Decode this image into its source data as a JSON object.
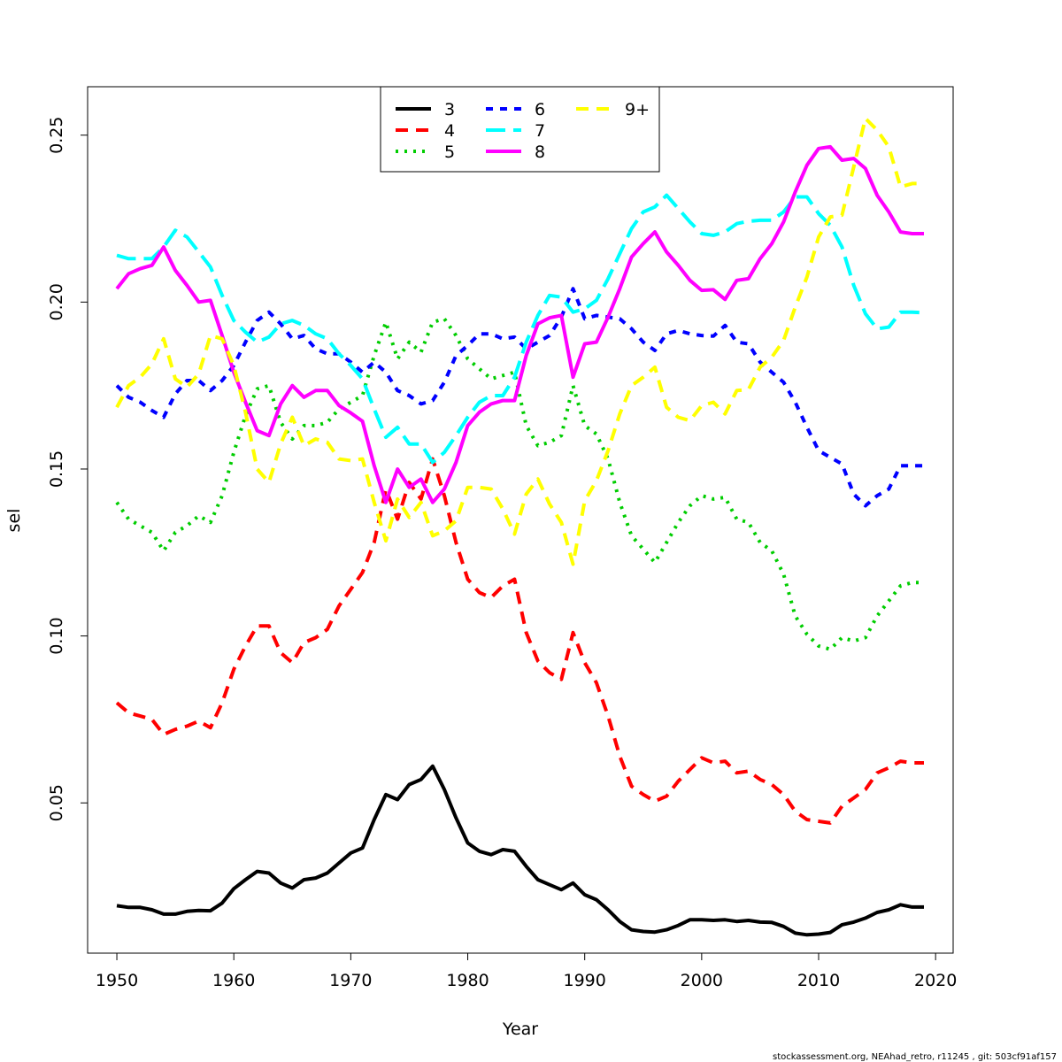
{
  "chart_data": {
    "type": "line",
    "title": "",
    "xlabel": "Year",
    "ylabel": "sel",
    "xlim": [
      1947.5,
      2021.5
    ],
    "ylim": [
      0.005,
      0.2645
    ],
    "xticks": [
      1950,
      1960,
      1970,
      1980,
      1990,
      2000,
      2010,
      2020
    ],
    "xtick_labels": [
      "1950",
      "1960",
      "1970",
      "1980",
      "1990",
      "2000",
      "2010",
      "2020"
    ],
    "yticks": [
      0.05,
      0.1,
      0.15,
      0.2,
      0.25
    ],
    "ytick_labels": [
      "0.05",
      "0.10",
      "0.15",
      "0.20",
      "0.25"
    ],
    "grid": false,
    "legend_position": "top-center",
    "x_start": 1950,
    "series": [
      {
        "name": "3",
        "color": "#000000",
        "dash": "solid",
        "values": [
          0.0192,
          0.0187,
          0.0187,
          0.018,
          0.0167,
          0.0167,
          0.0175,
          0.0178,
          0.0177,
          0.02,
          0.0243,
          0.027,
          0.0295,
          0.029,
          0.026,
          0.0245,
          0.027,
          0.0275,
          0.029,
          0.032,
          0.035,
          0.0365,
          0.045,
          0.0525,
          0.051,
          0.0555,
          0.057,
          0.061,
          0.054,
          0.0455,
          0.038,
          0.0355,
          0.0345,
          0.036,
          0.0355,
          0.031,
          0.027,
          0.0255,
          0.024,
          0.026,
          0.0225,
          0.021,
          0.018,
          0.0145,
          0.012,
          0.0115,
          0.0113,
          0.012,
          0.0133,
          0.015,
          0.015,
          0.0148,
          0.015,
          0.0145,
          0.0148,
          0.0143,
          0.0142,
          0.013,
          0.011,
          0.0105,
          0.0107,
          0.0112,
          0.0135,
          0.0143,
          0.0155,
          0.0172,
          0.018,
          0.0195,
          0.0188,
          0.0188
        ]
      },
      {
        "name": "4",
        "color": "#ff0000",
        "dash": "dashed",
        "values": [
          0.08,
          0.077,
          0.076,
          0.075,
          0.0705,
          0.072,
          0.073,
          0.0745,
          0.0725,
          0.08,
          0.09,
          0.097,
          0.103,
          0.103,
          0.095,
          0.092,
          0.098,
          0.0995,
          0.102,
          0.109,
          0.114,
          0.119,
          0.128,
          0.144,
          0.135,
          0.146,
          0.141,
          0.153,
          0.142,
          0.128,
          0.117,
          0.113,
          0.1115,
          0.115,
          0.117,
          0.101,
          0.0925,
          0.089,
          0.087,
          0.101,
          0.092,
          0.086,
          0.076,
          0.064,
          0.055,
          0.0525,
          0.0505,
          0.052,
          0.0565,
          0.06,
          0.0635,
          0.062,
          0.0625,
          0.059,
          0.0595,
          0.057,
          0.0555,
          0.0525,
          0.0475,
          0.045,
          0.0445,
          0.044,
          0.049,
          0.0515,
          0.054,
          0.059,
          0.0605,
          0.0625,
          0.062,
          0.062
        ]
      },
      {
        "name": "5",
        "color": "#00cd00",
        "dash": "dotted",
        "values": [
          0.14,
          0.135,
          0.133,
          0.131,
          0.1255,
          0.131,
          0.133,
          0.136,
          0.134,
          0.142,
          0.155,
          0.166,
          0.174,
          0.175,
          0.164,
          0.159,
          0.163,
          0.163,
          0.164,
          0.168,
          0.17,
          0.172,
          0.184,
          0.194,
          0.183,
          0.188,
          0.185,
          0.194,
          0.195,
          0.19,
          0.183,
          0.18,
          0.177,
          0.178,
          0.179,
          0.163,
          0.157,
          0.158,
          0.16,
          0.175,
          0.163,
          0.1605,
          0.153,
          0.14,
          0.13,
          0.126,
          0.122,
          0.128,
          0.134,
          0.139,
          0.142,
          0.141,
          0.1415,
          0.135,
          0.134,
          0.128,
          0.1255,
          0.1185,
          0.106,
          0.1005,
          0.097,
          0.096,
          0.0995,
          0.0985,
          0.0995,
          0.106,
          0.1105,
          0.115,
          0.116,
          0.116
        ]
      },
      {
        "name": "6",
        "color": "#0000ff",
        "dash": "dotdash",
        "values": [
          0.175,
          0.1715,
          0.17,
          0.1675,
          0.1655,
          0.1725,
          0.1765,
          0.1765,
          0.1735,
          0.1765,
          0.181,
          0.188,
          0.1945,
          0.197,
          0.1935,
          0.189,
          0.19,
          0.186,
          0.1845,
          0.1845,
          0.182,
          0.179,
          0.182,
          0.179,
          0.1735,
          0.172,
          0.1695,
          0.1705,
          0.176,
          0.184,
          0.187,
          0.1905,
          0.1905,
          0.189,
          0.1895,
          0.186,
          0.188,
          0.19,
          0.1955,
          0.204,
          0.195,
          0.196,
          0.1955,
          0.195,
          0.192,
          0.188,
          0.1855,
          0.1905,
          0.1915,
          0.1905,
          0.19,
          0.1898,
          0.193,
          0.188,
          0.1875,
          0.182,
          0.179,
          0.176,
          0.17,
          0.1625,
          0.1555,
          0.1535,
          0.1515,
          0.1425,
          0.139,
          0.142,
          0.144,
          0.151,
          0.151,
          0.151
        ]
      },
      {
        "name": "7",
        "color": "#00ffff",
        "dash": "longdash",
        "values": [
          0.214,
          0.213,
          0.213,
          0.213,
          0.2165,
          0.2215,
          0.2195,
          0.215,
          0.2105,
          0.202,
          0.1945,
          0.191,
          0.188,
          0.1895,
          0.1935,
          0.1945,
          0.193,
          0.1905,
          0.189,
          0.1845,
          0.181,
          0.177,
          0.168,
          0.1595,
          0.1625,
          0.1575,
          0.1575,
          0.152,
          0.155,
          0.16,
          0.1655,
          0.17,
          0.172,
          0.172,
          0.1775,
          0.188,
          0.196,
          0.202,
          0.2015,
          0.197,
          0.198,
          0.2005,
          0.207,
          0.2145,
          0.222,
          0.227,
          0.2285,
          0.232,
          0.228,
          0.224,
          0.2205,
          0.22,
          0.221,
          0.2235,
          0.2242,
          0.2245,
          0.2245,
          0.227,
          0.2315,
          0.2315,
          0.2265,
          0.223,
          0.2165,
          0.205,
          0.1965,
          0.192,
          0.1925,
          0.197,
          0.197,
          0.1968
        ]
      },
      {
        "name": "8",
        "color": "#ff00ff",
        "dash": "solid",
        "values": [
          0.204,
          0.2085,
          0.21,
          0.211,
          0.2165,
          0.2095,
          0.205,
          0.2,
          0.2005,
          0.19,
          0.179,
          0.17,
          0.1615,
          0.16,
          0.1695,
          0.175,
          0.1715,
          0.1735,
          0.1735,
          0.169,
          0.1668,
          0.1643,
          0.151,
          0.14,
          0.15,
          0.1445,
          0.147,
          0.14,
          0.144,
          0.152,
          0.163,
          0.167,
          0.1695,
          0.1705,
          0.1705,
          0.184,
          0.1935,
          0.1953,
          0.196,
          0.1775,
          0.1875,
          0.188,
          0.1955,
          0.204,
          0.2135,
          0.2175,
          0.221,
          0.215,
          0.211,
          0.2065,
          0.2035,
          0.2037,
          0.2008,
          0.2065,
          0.207,
          0.213,
          0.2175,
          0.224,
          0.233,
          0.241,
          0.246,
          0.2465,
          0.2425,
          0.243,
          0.24,
          0.232,
          0.227,
          0.221,
          0.2205,
          0.2205
        ]
      },
      {
        "name": "9+",
        "color": "#ffff00",
        "dash": "dashed",
        "values": [
          0.1685,
          0.175,
          0.1775,
          0.1815,
          0.189,
          0.177,
          0.1745,
          0.1785,
          0.19,
          0.189,
          0.181,
          0.167,
          0.15,
          0.146,
          0.1575,
          0.1655,
          0.157,
          0.159,
          0.158,
          0.153,
          0.1525,
          0.153,
          0.14,
          0.1285,
          0.141,
          0.1355,
          0.14,
          0.13,
          0.1315,
          0.1345,
          0.1445,
          0.1445,
          0.144,
          0.138,
          0.1305,
          0.1425,
          0.147,
          0.1395,
          0.134,
          0.1215,
          0.1405,
          0.1465,
          0.1555,
          0.1665,
          0.175,
          0.1775,
          0.1805,
          0.1685,
          0.1655,
          0.1645,
          0.169,
          0.17,
          0.1665,
          0.1735,
          0.1738,
          0.1805,
          0.1835,
          0.1885,
          0.1985,
          0.2075,
          0.2195,
          0.2255,
          0.226,
          0.2405,
          0.255,
          0.2515,
          0.2465,
          0.2345,
          0.2355,
          0.2355
        ]
      }
    ]
  },
  "footer": "stockassessment.org, NEAhad_retro, r11245 , git: 503cf91af157"
}
